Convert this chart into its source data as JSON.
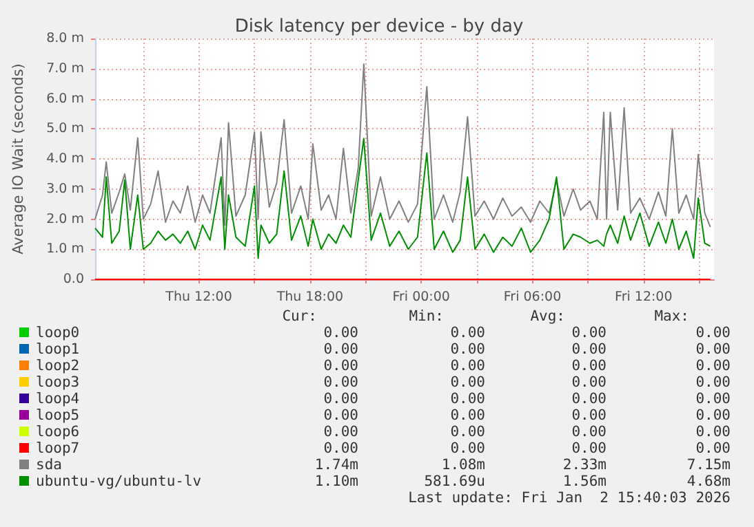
{
  "chart_data": {
    "type": "line",
    "title": "Disk latency per device - by day",
    "ylabel": "Average IO Wait (seconds)",
    "x": [
      "2026-01-01T06:24",
      "2026-01-01T06:48",
      "2026-01-01T07:00",
      "2026-01-01T07:18",
      "2026-01-01T07:42",
      "2026-01-01T08:00",
      "2026-01-01T08:18",
      "2026-01-01T08:42",
      "2026-01-01T09:00",
      "2026-01-01T09:24",
      "2026-01-01T09:48",
      "2026-01-01T10:12",
      "2026-01-01T10:36",
      "2026-01-01T11:00",
      "2026-01-01T11:24",
      "2026-01-01T11:48",
      "2026-01-01T12:12",
      "2026-01-01T12:36",
      "2026-01-01T13:12",
      "2026-01-01T13:24",
      "2026-01-01T13:36",
      "2026-01-01T14:00",
      "2026-01-01T14:30",
      "2026-01-01T15:00",
      "2026-01-01T15:12",
      "2026-01-01T15:21",
      "2026-01-01T15:48",
      "2026-01-01T16:12",
      "2026-01-01T16:36",
      "2026-01-01T17:00",
      "2026-01-01T17:30",
      "2026-01-01T17:54",
      "2026-01-01T18:09",
      "2026-01-01T18:36",
      "2026-01-01T19:00",
      "2026-01-01T19:24",
      "2026-01-01T19:48",
      "2026-01-01T20:12",
      "2026-01-01T20:36",
      "2026-01-01T20:54",
      "2026-01-01T21:18",
      "2026-01-01T21:48",
      "2026-01-01T22:18",
      "2026-01-01T22:48",
      "2026-01-01T23:18",
      "2026-01-01T23:48",
      "2026-01-02T00:18",
      "2026-01-02T00:42",
      "2026-01-02T01:12",
      "2026-01-02T01:42",
      "2026-01-02T02:06",
      "2026-01-02T02:30",
      "2026-01-02T02:54",
      "2026-01-02T03:24",
      "2026-01-02T03:54",
      "2026-01-02T04:24",
      "2026-01-02T04:54",
      "2026-01-02T05:24",
      "2026-01-02T05:54",
      "2026-01-02T06:24",
      "2026-01-02T06:54",
      "2026-01-02T07:18",
      "2026-01-02T07:42",
      "2026-01-02T08:12",
      "2026-01-02T08:36",
      "2026-01-02T09:06",
      "2026-01-02T09:30",
      "2026-01-02T09:51",
      "2026-01-02T10:00",
      "2026-01-02T10:12",
      "2026-01-02T10:36",
      "2026-01-02T10:57",
      "2026-01-02T11:18",
      "2026-01-02T11:48",
      "2026-01-02T12:18",
      "2026-01-02T12:48",
      "2026-01-02T13:12",
      "2026-01-02T13:33",
      "2026-01-02T13:54",
      "2026-01-02T14:18",
      "2026-01-02T14:42",
      "2026-01-02T14:57",
      "2026-01-02T15:18",
      "2026-01-02T15:36"
    ],
    "series": [
      {
        "name": "loop0",
        "color": "#00cc00",
        "values": [
          null,
          null,
          null,
          null,
          null,
          null,
          null,
          null,
          null,
          null,
          null,
          null,
          null,
          null,
          null,
          null,
          null,
          null,
          null,
          null,
          null,
          null,
          null,
          null,
          null,
          null,
          null,
          null,
          null,
          null,
          null,
          null,
          null,
          null,
          null,
          null,
          null,
          null,
          null,
          null,
          null,
          null,
          null,
          null,
          null,
          null,
          null,
          null,
          null,
          null,
          null,
          null,
          null,
          null,
          null,
          null,
          null,
          null,
          null,
          null,
          null,
          null,
          null,
          null,
          null,
          null,
          null,
          null,
          null,
          null,
          null,
          null,
          null,
          null,
          null,
          null,
          null,
          null,
          null,
          null,
          null,
          null,
          null,
          null
        ]
      },
      {
        "name": "loop1",
        "color": "#0066b3",
        "values": [
          null,
          null,
          null,
          null,
          null,
          null,
          null,
          null,
          null,
          null,
          null,
          null,
          null,
          null,
          null,
          null,
          null,
          null,
          null,
          null,
          null,
          null,
          null,
          null,
          null,
          null,
          null,
          null,
          null,
          null,
          null,
          null,
          null,
          null,
          null,
          null,
          null,
          null,
          null,
          null,
          null,
          null,
          null,
          null,
          null,
          null,
          null,
          null,
          null,
          null,
          null,
          null,
          null,
          null,
          null,
          null,
          null,
          null,
          null,
          null,
          null,
          null,
          null,
          null,
          null,
          null,
          null,
          null,
          null,
          null,
          null,
          null,
          null,
          null,
          null,
          null,
          null,
          null,
          null,
          null,
          null,
          null,
          null,
          null
        ]
      },
      {
        "name": "loop2",
        "color": "#ff8000",
        "values": [
          null,
          null,
          null,
          null,
          null,
          null,
          null,
          null,
          null,
          null,
          null,
          null,
          null,
          null,
          null,
          null,
          null,
          null,
          null,
          null,
          null,
          null,
          null,
          null,
          null,
          null,
          null,
          null,
          null,
          null,
          null,
          null,
          null,
          null,
          null,
          null,
          null,
          null,
          null,
          null,
          null,
          null,
          null,
          null,
          null,
          null,
          null,
          null,
          null,
          null,
          null,
          null,
          null,
          null,
          null,
          null,
          null,
          null,
          null,
          null,
          null,
          null,
          null,
          null,
          null,
          null,
          null,
          null,
          null,
          null,
          null,
          null,
          null,
          null,
          null,
          null,
          null,
          null,
          null,
          null,
          null,
          null,
          null,
          null
        ]
      },
      {
        "name": "loop3",
        "color": "#ffcc00",
        "values": [
          null,
          null,
          null,
          null,
          null,
          null,
          null,
          null,
          null,
          null,
          null,
          null,
          null,
          null,
          null,
          null,
          null,
          null,
          null,
          null,
          null,
          null,
          null,
          null,
          null,
          null,
          null,
          null,
          null,
          null,
          null,
          null,
          null,
          null,
          null,
          null,
          null,
          null,
          null,
          null,
          null,
          null,
          null,
          null,
          null,
          null,
          null,
          null,
          null,
          null,
          null,
          null,
          null,
          null,
          null,
          null,
          null,
          null,
          null,
          null,
          null,
          null,
          null,
          null,
          null,
          null,
          null,
          null,
          null,
          null,
          null,
          null,
          null,
          null,
          null,
          null,
          null,
          null,
          null,
          null,
          null,
          null,
          null,
          null
        ]
      },
      {
        "name": "loop4",
        "color": "#330099",
        "values": [
          null,
          null,
          null,
          null,
          null,
          null,
          null,
          null,
          null,
          null,
          null,
          null,
          null,
          null,
          null,
          null,
          null,
          null,
          null,
          null,
          null,
          null,
          null,
          null,
          null,
          null,
          null,
          null,
          null,
          null,
          null,
          null,
          null,
          null,
          null,
          null,
          null,
          null,
          null,
          null,
          null,
          null,
          null,
          null,
          null,
          null,
          null,
          null,
          null,
          null,
          null,
          null,
          null,
          null,
          null,
          null,
          null,
          null,
          null,
          null,
          null,
          null,
          null,
          null,
          null,
          null,
          null,
          null,
          null,
          null,
          null,
          null,
          null,
          null,
          null,
          null,
          null,
          null,
          null,
          null,
          null,
          null,
          null,
          null
        ]
      },
      {
        "name": "loop5",
        "color": "#990099",
        "values": [
          null,
          null,
          null,
          null,
          null,
          null,
          null,
          null,
          null,
          null,
          null,
          null,
          null,
          null,
          null,
          null,
          null,
          null,
          null,
          null,
          null,
          null,
          null,
          null,
          null,
          null,
          null,
          null,
          null,
          null,
          null,
          null,
          null,
          null,
          null,
          null,
          null,
          null,
          null,
          null,
          null,
          null,
          null,
          null,
          null,
          null,
          null,
          null,
          null,
          null,
          null,
          null,
          null,
          null,
          null,
          null,
          null,
          null,
          null,
          null,
          null,
          null,
          null,
          null,
          null,
          null,
          null,
          null,
          null,
          null,
          null,
          null,
          null,
          null,
          null,
          null,
          null,
          null,
          null,
          null,
          null,
          null,
          null,
          null
        ]
      },
      {
        "name": "loop6",
        "color": "#ccff00",
        "values": [
          null,
          null,
          null,
          null,
          null,
          null,
          null,
          null,
          null,
          null,
          null,
          null,
          null,
          null,
          null,
          null,
          null,
          null,
          null,
          null,
          null,
          null,
          null,
          null,
          null,
          null,
          null,
          null,
          null,
          null,
          null,
          null,
          null,
          null,
          null,
          null,
          null,
          null,
          null,
          null,
          null,
          null,
          null,
          null,
          null,
          null,
          null,
          null,
          null,
          null,
          null,
          null,
          null,
          null,
          null,
          null,
          null,
          null,
          null,
          null,
          null,
          null,
          null,
          null,
          null,
          null,
          null,
          null,
          null,
          null,
          null,
          null,
          null,
          null,
          null,
          null,
          null,
          null,
          null,
          null,
          null,
          null,
          null,
          null
        ]
      },
      {
        "name": "loop7",
        "color": "#ff0000",
        "values": [
          0,
          0,
          0,
          0,
          0,
          0,
          0,
          0,
          0,
          0,
          0,
          0,
          0,
          0,
          0,
          0,
          0,
          0,
          0,
          0,
          0,
          0,
          0,
          0,
          0,
          0,
          0,
          0,
          0,
          0,
          0,
          0,
          0,
          0,
          0,
          0,
          0,
          0,
          0,
          0,
          0,
          0,
          0,
          0,
          0,
          0,
          0,
          0,
          0,
          0,
          0,
          0,
          0,
          0,
          0,
          0,
          0,
          0,
          0,
          0,
          0,
          0,
          0,
          0,
          0,
          0,
          0,
          0,
          0,
          0,
          0,
          0,
          0,
          0,
          0,
          0,
          0,
          0,
          0,
          0,
          0,
          0,
          0,
          0
        ]
      },
      {
        "name": "sda",
        "color": "#808080",
        "values": [
          2.0,
          2.8,
          3.9,
          2.2,
          2.9,
          3.5,
          2.3,
          4.7,
          2.0,
          2.5,
          3.6,
          1.9,
          2.6,
          2.2,
          3.1,
          1.9,
          2.8,
          2.2,
          4.7,
          1.8,
          5.2,
          2.1,
          2.8,
          4.9,
          2.0,
          4.9,
          2.4,
          3.2,
          5.3,
          2.2,
          3.1,
          2.0,
          4.5,
          2.3,
          2.8,
          2.0,
          4.35,
          2.2,
          3.7,
          7.15,
          2.1,
          3.4,
          2.0,
          2.6,
          1.9,
          2.5,
          6.4,
          2.0,
          2.8,
          1.9,
          2.9,
          5.4,
          2.1,
          2.6,
          2.0,
          2.7,
          2.1,
          2.4,
          1.9,
          2.6,
          2.2,
          3.3,
          2.1,
          3.0,
          2.3,
          2.6,
          2.0,
          5.55,
          2.0,
          5.55,
          2.3,
          5.7,
          2.2,
          2.7,
          2.0,
          2.9,
          2.1,
          5.0,
          2.2,
          2.8,
          2.0,
          4.15,
          2.2,
          1.74
        ]
      },
      {
        "name": "ubuntu-vg/ubuntu-lv",
        "color": "#008f00",
        "values": [
          1.7,
          1.4,
          3.4,
          1.2,
          1.6,
          3.3,
          1.0,
          2.8,
          1.0,
          1.2,
          1.6,
          1.3,
          1.5,
          1.2,
          1.6,
          1.0,
          1.8,
          1.3,
          3.4,
          1.0,
          2.8,
          1.4,
          1.1,
          3.1,
          0.7,
          1.8,
          1.2,
          1.5,
          3.6,
          1.3,
          2.1,
          1.1,
          2.0,
          1.0,
          1.5,
          1.2,
          1.8,
          1.4,
          3.3,
          4.68,
          1.3,
          2.2,
          1.1,
          1.6,
          1.0,
          1.4,
          4.2,
          1.0,
          1.6,
          0.9,
          1.3,
          3.4,
          1.0,
          1.5,
          0.9,
          1.4,
          1.1,
          1.7,
          0.9,
          1.3,
          2.0,
          3.4,
          1.0,
          1.5,
          1.4,
          1.2,
          1.3,
          1.1,
          1.5,
          1.8,
          1.2,
          2.1,
          1.3,
          2.2,
          1.1,
          1.9,
          1.2,
          2.0,
          1.0,
          1.6,
          0.7,
          2.7,
          1.2,
          1.1
        ]
      }
    ],
    "xlim": [
      "2026-01-01T06:24",
      "2026-01-02T15:48"
    ],
    "xticks": [
      {
        "value": "2026-01-01T09:00",
        "label": null
      },
      {
        "value": "2026-01-01T12:00",
        "label": "Thu 12:00"
      },
      {
        "value": "2026-01-01T15:00",
        "label": null
      },
      {
        "value": "2026-01-01T18:00",
        "label": "Thu 18:00"
      },
      {
        "value": "2026-01-01T21:00",
        "label": null
      },
      {
        "value": "2026-01-02T00:00",
        "label": "Fri 00:00"
      },
      {
        "value": "2026-01-02T03:00",
        "label": null
      },
      {
        "value": "2026-01-02T06:00",
        "label": "Fri 06:00"
      },
      {
        "value": "2026-01-02T09:00",
        "label": null
      },
      {
        "value": "2026-01-02T12:00",
        "label": "Fri 12:00"
      },
      {
        "value": "2026-01-02T15:00",
        "label": null
      }
    ],
    "ylim": [
      0,
      8
    ],
    "yticks": [
      {
        "value": 0,
        "label": "0.0"
      },
      {
        "value": 1,
        "label": "1.0 m"
      },
      {
        "value": 2,
        "label": "2.0 m"
      },
      {
        "value": 3,
        "label": "3.0 m"
      },
      {
        "value": 4,
        "label": "4.0 m"
      },
      {
        "value": 5,
        "label": "5.0 m"
      },
      {
        "value": 6,
        "label": "6.0 m"
      },
      {
        "value": 7,
        "label": "7.0 m"
      },
      {
        "value": 8,
        "label": "8.0 m"
      }
    ],
    "grid": true,
    "legend": "bottom",
    "marker": "none",
    "line_style": "solid",
    "annotations": [
      "Cur:",
      "Min:",
      "Avg:",
      "Max:",
      "0.00",
      "0.00",
      "0.00",
      "0.00",
      "0.00",
      "0.00",
      "0.00",
      "0.00",
      "0.00",
      "0.00",
      "0.00",
      "0.00",
      "0.00",
      "0.00",
      "0.00",
      "0.00",
      "0.00",
      "0.00",
      "0.00",
      "0.00",
      "0.00",
      "0.00",
      "0.00",
      "0.00",
      "0.00",
      "0.00",
      "0.00",
      "0.00",
      "0.00",
      "0.00",
      "0.00",
      "0.00",
      "1.74m",
      "1.08m",
      "2.33m",
      "7.15m",
      "1.10m",
      "581.69u",
      "1.56m",
      "4.68m",
      "Last update: Fri Jan  2 15:40:03 2026"
    ]
  }
}
